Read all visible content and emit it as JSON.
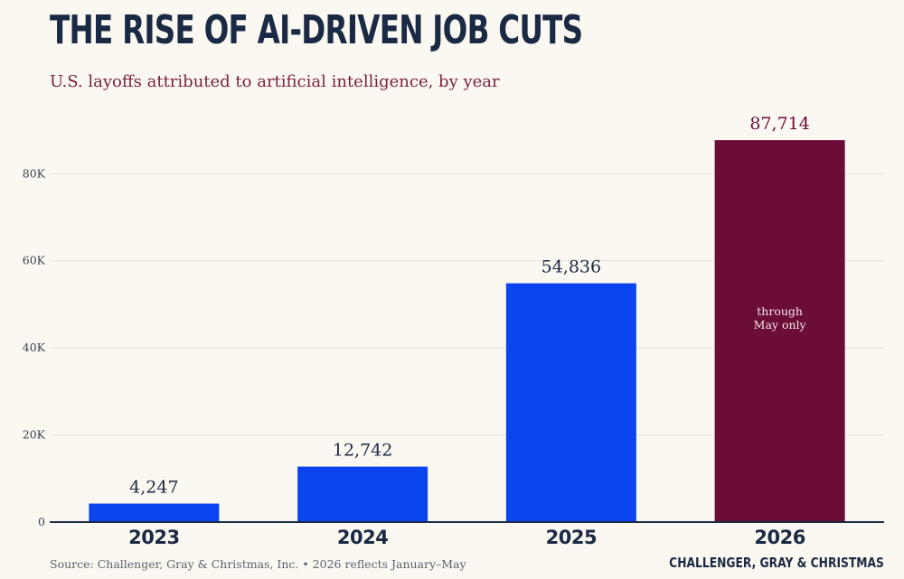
{
  "header": {
    "title": "THE RISE OF AI-DRIVEN JOB CUTS",
    "subtitle": "U.S. layoffs attributed to artificial intelligence, by year"
  },
  "footer": {
    "source": "Source: Challenger, Gray & Christmas, Inc.  •  2026 reflects January–May",
    "credit": "CHALLENGER, GRAY & CHRISTMAS"
  },
  "colors": {
    "title": "#1a2a44",
    "subtitle": "#7a1f3d",
    "bar_primary": "#0a44ee",
    "bar_highlight": "#6b0d36",
    "grid": "#e3e0d8",
    "axis": "#1a2a44",
    "tick_text": "#3a4150",
    "value_text": "#1a2a44",
    "value_text_highlight": "#6b0d36",
    "background": "#fbf8f1"
  },
  "chart_data": {
    "type": "bar",
    "categories": [
      "2023",
      "2024",
      "2025",
      "2026"
    ],
    "values": [
      4247,
      12742,
      54836,
      87714
    ],
    "value_labels": [
      "4,247",
      "12,742",
      "54,836",
      "87,714"
    ],
    "highlight_index": 3,
    "bar_annotation": {
      "index": 3,
      "lines": [
        "through",
        "May only"
      ]
    },
    "y_ticks": [
      0,
      20000,
      40000,
      60000,
      80000
    ],
    "y_tick_labels": [
      "0",
      "20K",
      "40K",
      "60K",
      "80K"
    ],
    "ylim": [
      0,
      95000
    ],
    "grid": true,
    "title": "THE RISE OF AI-DRIVEN JOB CUTS",
    "xlabel": "",
    "ylabel": ""
  }
}
